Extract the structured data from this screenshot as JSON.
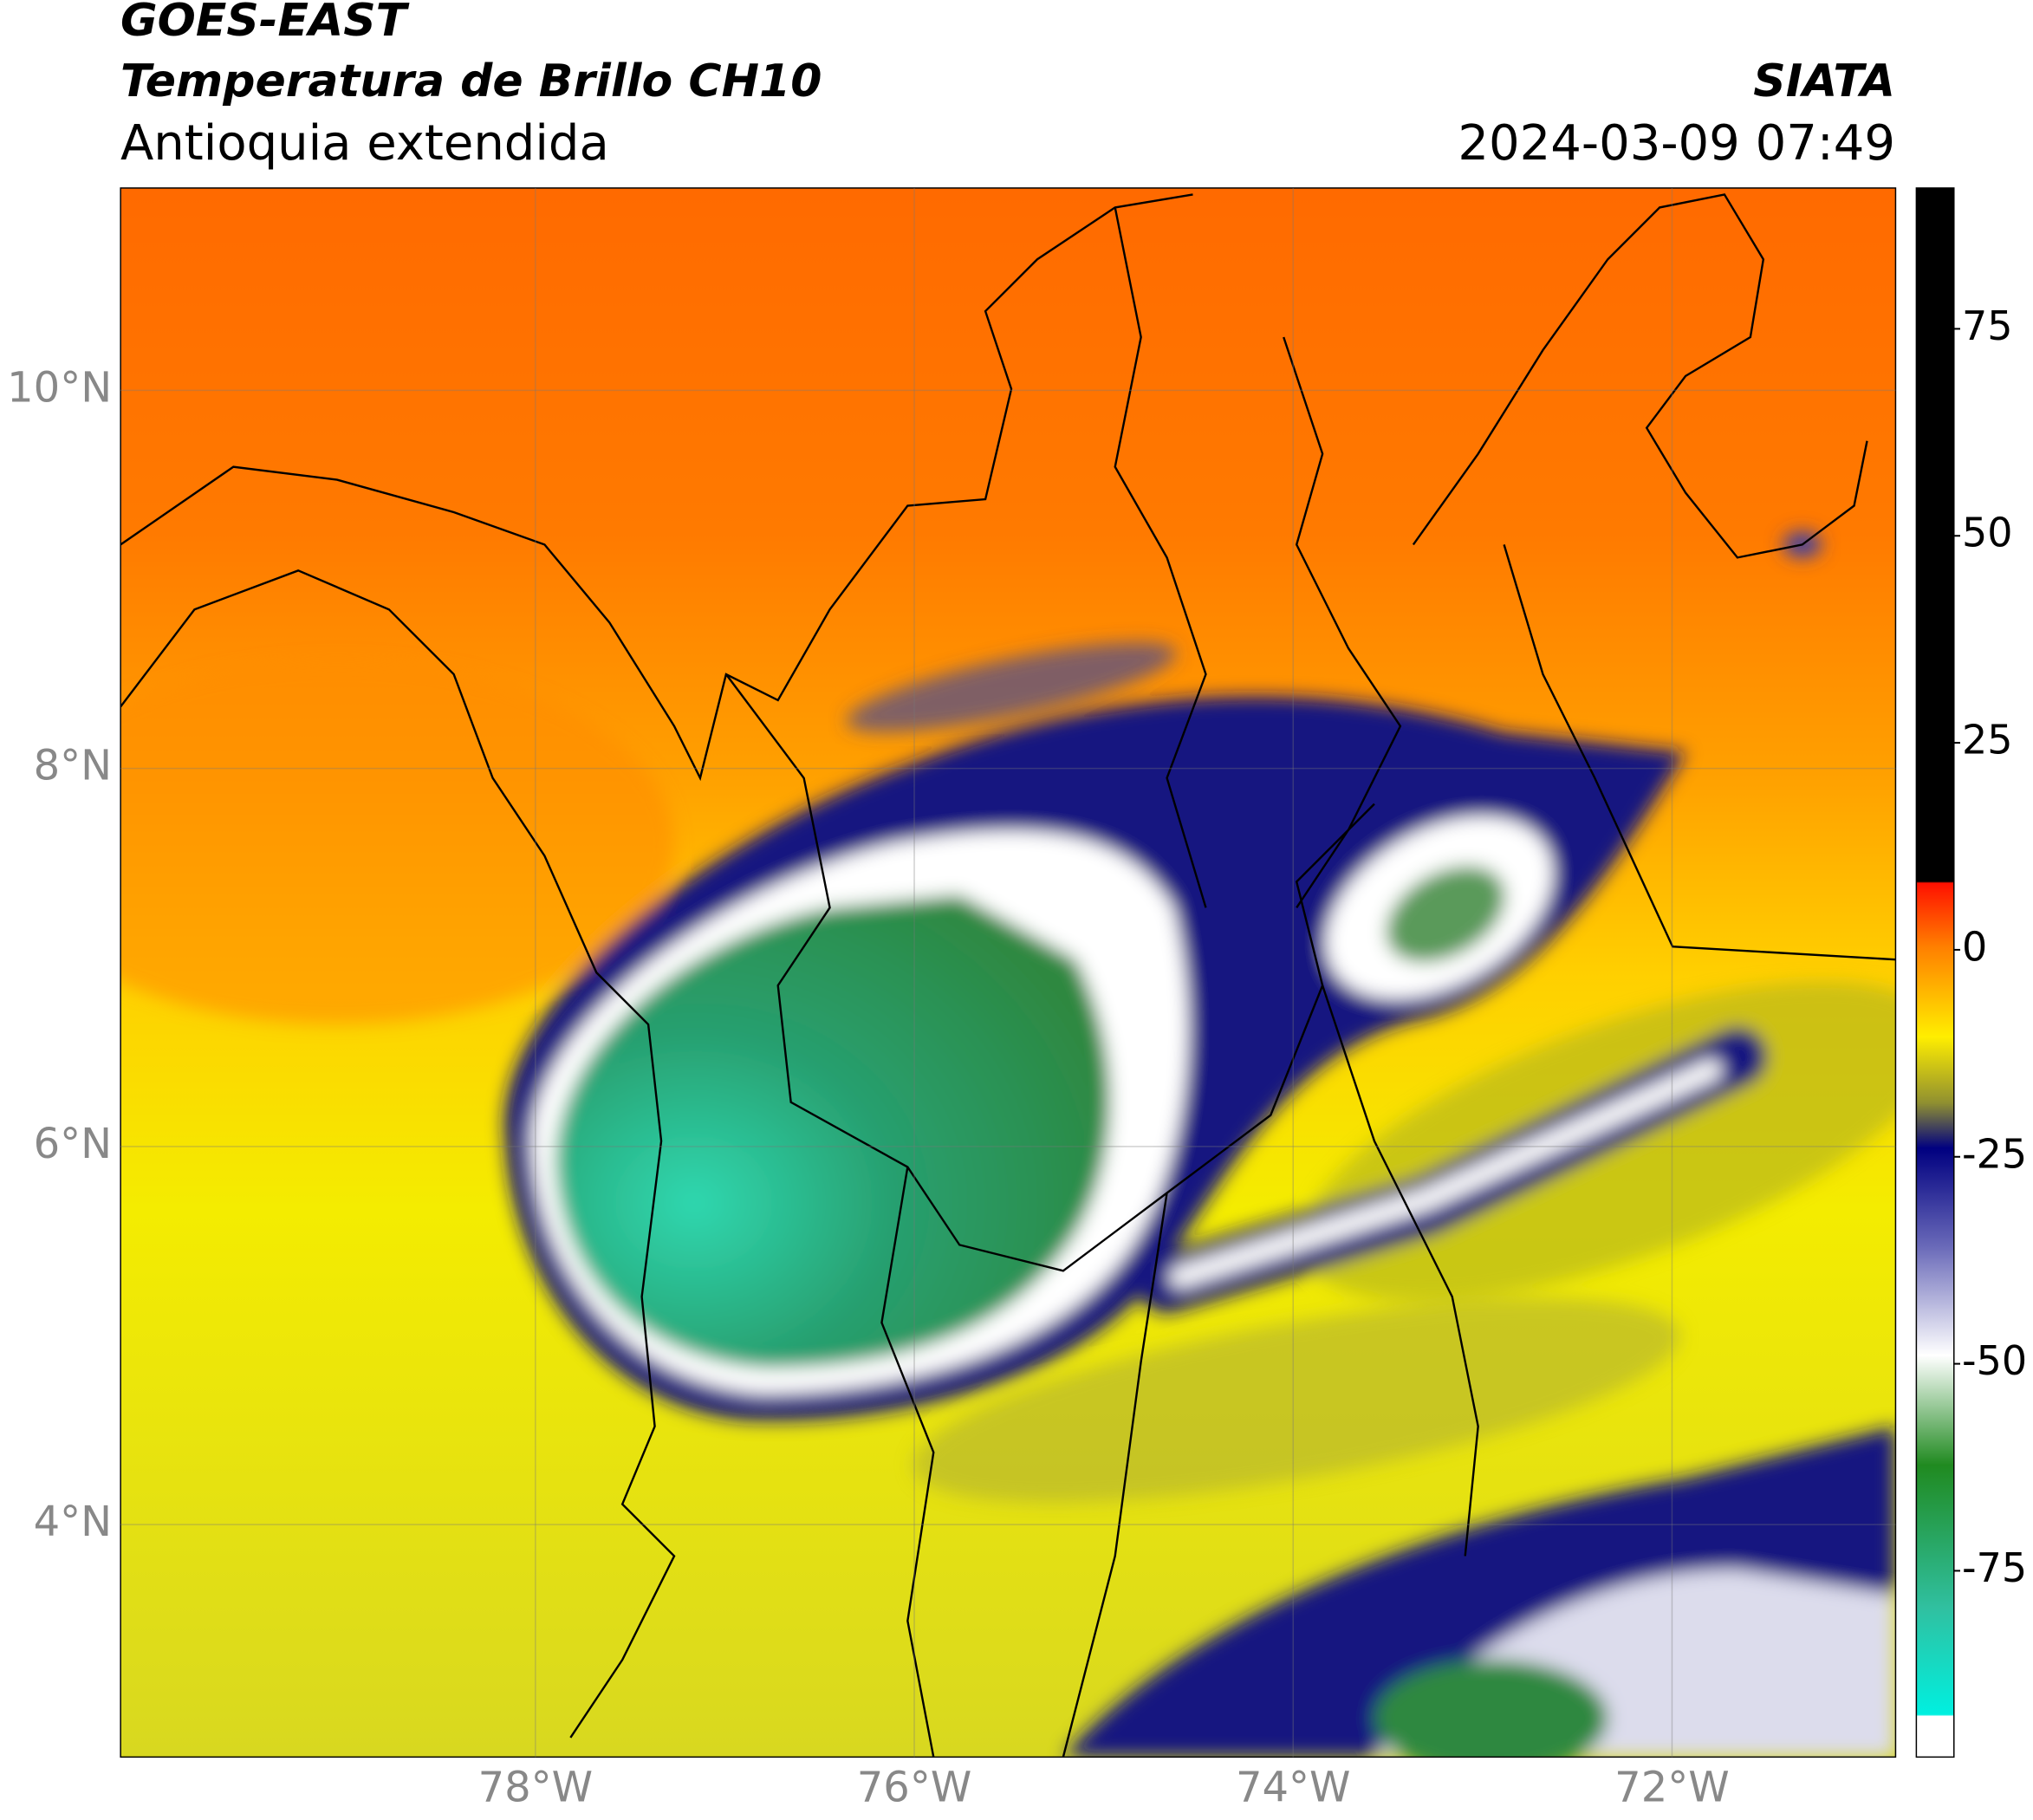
{
  "header": {
    "title": "GOES-EAST",
    "subtitle": "Temperatura de Brillo CH10",
    "region": "Antioquia extendida",
    "source": "SIATA",
    "timestamp": "2024-03-09 07:49"
  },
  "map": {
    "xlim": [
      -80.19,
      -70.82
    ],
    "ylim": [
      2.77,
      11.07
    ],
    "grid": true,
    "xticks": [
      {
        "value": -78,
        "label": "78°W"
      },
      {
        "value": -76,
        "label": "76°W"
      },
      {
        "value": -74,
        "label": "74°W"
      },
      {
        "value": -72,
        "label": "72°W"
      }
    ],
    "yticks": [
      {
        "value": 10,
        "label": "10°N"
      },
      {
        "value": 8,
        "label": "8°N"
      },
      {
        "value": 6,
        "label": "6°N"
      },
      {
        "value": 4,
        "label": "4°N"
      }
    ]
  },
  "colorbar": {
    "ylim": [
      -97.5,
      92
    ],
    "yticks": [
      75,
      50,
      25,
      0,
      -25,
      -50,
      -75
    ]
  }
}
